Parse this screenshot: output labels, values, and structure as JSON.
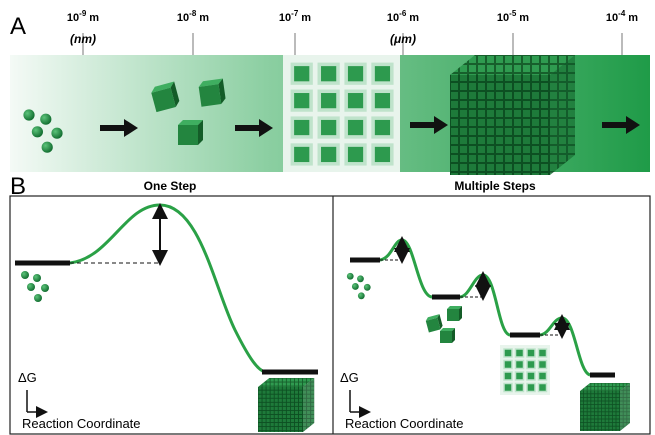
{
  "panel_a": {
    "label": "A",
    "scale": [
      {
        "base": "10",
        "exponent": "-9",
        "unit": "m",
        "note": "(nm)"
      },
      {
        "base": "10",
        "exponent": "-8",
        "unit": "m"
      },
      {
        "base": "10",
        "exponent": "-7",
        "unit": "m"
      },
      {
        "base": "10",
        "exponent": "-6",
        "unit": "m",
        "note": "(μm)"
      },
      {
        "base": "10",
        "exponent": "-5",
        "unit": "m"
      },
      {
        "base": "10",
        "exponent": "-4",
        "unit": "m"
      }
    ]
  },
  "panel_b": {
    "label": "B",
    "one_step": {
      "title": "One Step",
      "y_axis": "ΔG",
      "x_axis": "Reaction Coordinate"
    },
    "multiple_steps": {
      "title": "Multiple Steps",
      "y_axis": "ΔG",
      "x_axis": "Reaction Coordinate"
    }
  }
}
